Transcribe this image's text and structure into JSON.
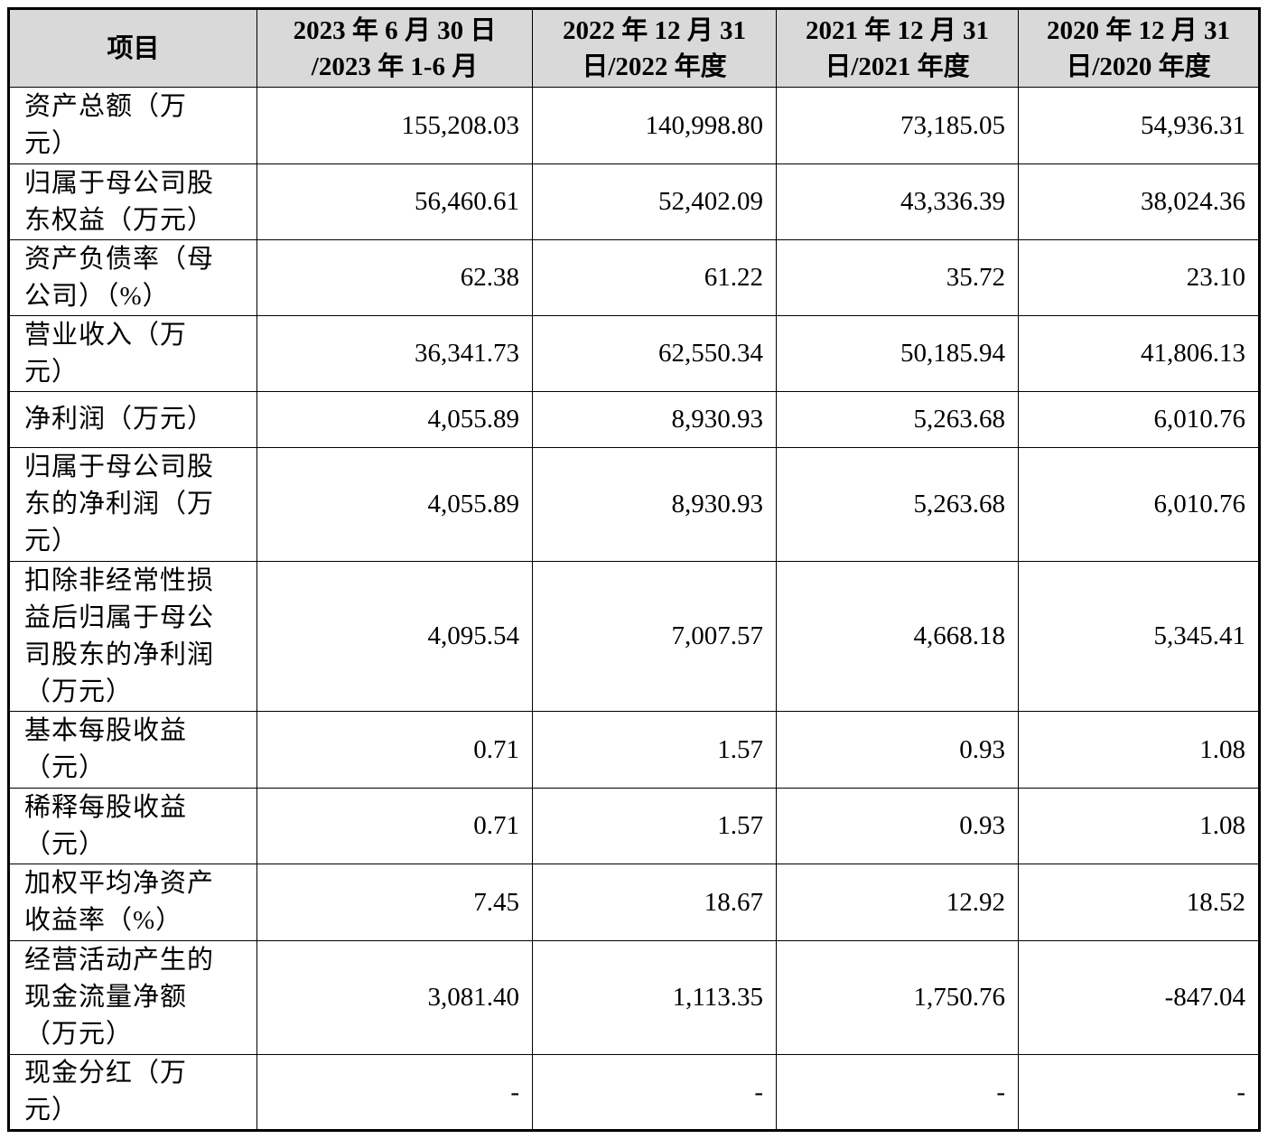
{
  "table": {
    "headers": [
      "项目",
      "2023 年 6 月 30 日\n/2023 年 1-6 月",
      "2022 年 12 月 31\n日/2022 年度",
      "2021 年 12 月 31\n日/2021 年度",
      "2020 年 12 月 31\n日/2020 年度"
    ],
    "header_bg": "#d9d9d9",
    "rows": [
      {
        "label": "资产总额（万\n元）",
        "values": [
          "155,208.03",
          "140,998.80",
          "73,185.05",
          "54,936.31"
        ]
      },
      {
        "label": "归属于母公司股\n东权益（万元）",
        "values": [
          "56,460.61",
          "52,402.09",
          "43,336.39",
          "38,024.36"
        ]
      },
      {
        "label": "资产负债率（母\n公司）（%）",
        "values": [
          "62.38",
          "61.22",
          "35.72",
          "23.10"
        ]
      },
      {
        "label": "营业收入（万\n元）",
        "values": [
          "36,341.73",
          "62,550.34",
          "50,185.94",
          "41,806.13"
        ]
      },
      {
        "label": "净利润（万元）",
        "values": [
          "4,055.89",
          "8,930.93",
          "5,263.68",
          "6,010.76"
        ]
      },
      {
        "label": "归属于母公司股\n东的净利润（万\n元）",
        "values": [
          "4,055.89",
          "8,930.93",
          "5,263.68",
          "6,010.76"
        ]
      },
      {
        "label": "扣除非经常性损\n益后归属于母公\n司股东的净利润\n（万元）",
        "values": [
          "4,095.54",
          "7,007.57",
          "4,668.18",
          "5,345.41"
        ]
      },
      {
        "label": "基本每股收益\n（元）",
        "values": [
          "0.71",
          "1.57",
          "0.93",
          "1.08"
        ]
      },
      {
        "label": "稀释每股收益\n（元）",
        "values": [
          "0.71",
          "1.57",
          "0.93",
          "1.08"
        ]
      },
      {
        "label": "加权平均净资产\n收益率（%）",
        "values": [
          "7.45",
          "18.67",
          "12.92",
          "18.52"
        ]
      },
      {
        "label": "经营活动产生的\n现金流量净额\n（万元）",
        "values": [
          "3,081.40",
          "1,113.35",
          "1,750.76",
          "-847.04"
        ]
      },
      {
        "label": "现金分红（万\n元）",
        "values": [
          "-",
          "-",
          "-",
          "-"
        ]
      }
    ]
  }
}
